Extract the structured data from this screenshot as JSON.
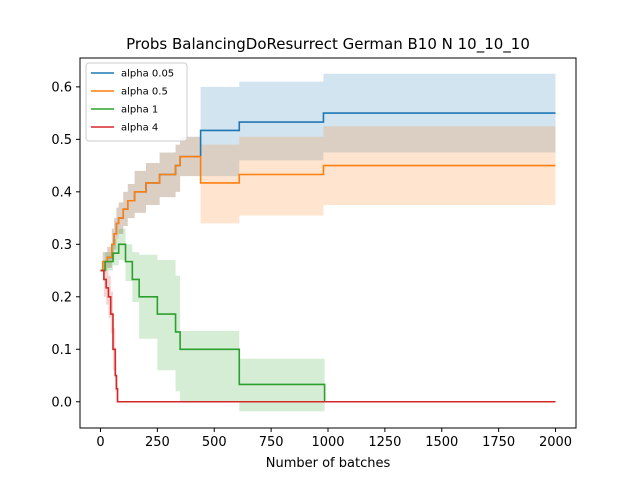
{
  "chart_data": {
    "type": "line",
    "title": "Probs BalancingDoResurrect German B10 N 10_10_10",
    "xlabel": "Number of batches",
    "ylabel": "",
    "xlim": [
      -90,
      2090
    ],
    "ylim": [
      -0.05,
      0.655
    ],
    "x_ticks": [
      0,
      250,
      500,
      750,
      1000,
      1250,
      1500,
      1750,
      2000
    ],
    "x_tick_labels": [
      "0",
      "250",
      "500",
      "750",
      "1000",
      "1250",
      "1500",
      "1750",
      "2000"
    ],
    "y_ticks": [
      0.0,
      0.1,
      0.2,
      0.3,
      0.4,
      0.5,
      0.6
    ],
    "y_tick_labels": [
      "0.0",
      "0.1",
      "0.2",
      "0.3",
      "0.4",
      "0.5",
      "0.6"
    ],
    "grid": false,
    "legend_position": "upper-left",
    "series": [
      {
        "name": "alpha 0.05",
        "color": "#1f77b4",
        "x": [
          0,
          10,
          30,
          50,
          60,
          70,
          80,
          100,
          120,
          150,
          200,
          260,
          300,
          330,
          340,
          350,
          440,
          610,
          970,
          980,
          2000
        ],
        "y": [
          0.25,
          0.267,
          0.275,
          0.3,
          0.32,
          0.34,
          0.35,
          0.367,
          0.383,
          0.4,
          0.417,
          0.433,
          0.433,
          0.45,
          0.45,
          0.467,
          0.517,
          0.533,
          0.533,
          0.55,
          0.55
        ],
        "lower": [
          0.25,
          0.25,
          0.255,
          0.27,
          0.29,
          0.31,
          0.32,
          0.335,
          0.35,
          0.36,
          0.375,
          0.39,
          0.39,
          0.4,
          0.4,
          0.43,
          0.43,
          0.46,
          0.46,
          0.475,
          0.475
        ],
        "upper": [
          0.25,
          0.285,
          0.295,
          0.33,
          0.35,
          0.37,
          0.38,
          0.4,
          0.415,
          0.44,
          0.455,
          0.475,
          0.475,
          0.49,
          0.49,
          0.505,
          0.6,
          0.61,
          0.61,
          0.625,
          0.625
        ]
      },
      {
        "name": "alpha 0.5",
        "color": "#ff7f0e",
        "x": [
          0,
          10,
          30,
          50,
          60,
          70,
          80,
          100,
          120,
          150,
          200,
          260,
          300,
          330,
          340,
          350,
          440,
          610,
          970,
          980,
          2000
        ],
        "y": [
          0.25,
          0.267,
          0.275,
          0.3,
          0.32,
          0.34,
          0.35,
          0.367,
          0.383,
          0.4,
          0.417,
          0.433,
          0.433,
          0.45,
          0.45,
          0.467,
          0.417,
          0.433,
          0.433,
          0.45,
          0.45
        ],
        "lower": [
          0.25,
          0.25,
          0.255,
          0.27,
          0.29,
          0.31,
          0.32,
          0.335,
          0.35,
          0.36,
          0.375,
          0.39,
          0.39,
          0.4,
          0.4,
          0.43,
          0.34,
          0.355,
          0.355,
          0.375,
          0.375
        ],
        "upper": [
          0.25,
          0.285,
          0.295,
          0.33,
          0.35,
          0.37,
          0.38,
          0.4,
          0.415,
          0.44,
          0.455,
          0.475,
          0.475,
          0.49,
          0.49,
          0.505,
          0.49,
          0.505,
          0.505,
          0.525,
          0.525
        ]
      },
      {
        "name": "alpha 1",
        "color": "#2ca02c",
        "x": [
          0,
          20,
          40,
          55,
          60,
          80,
          110,
          140,
          170,
          250,
          320,
          330,
          350,
          610,
          975,
          985,
          2000
        ],
        "y": [
          0.25,
          0.267,
          0.267,
          0.283,
          0.283,
          0.3,
          0.267,
          0.233,
          0.2,
          0.167,
          0.167,
          0.133,
          0.1,
          0.033,
          0.033,
          0.0,
          0.0
        ],
        "lower": [
          0.25,
          0.25,
          0.25,
          0.26,
          0.26,
          0.27,
          0.23,
          0.19,
          0.12,
          0.06,
          0.06,
          0.02,
          0.0,
          -0.018,
          -0.018,
          0.0,
          0.0
        ],
        "upper": [
          0.25,
          0.285,
          0.285,
          0.31,
          0.31,
          0.33,
          0.3,
          0.285,
          0.28,
          0.27,
          0.27,
          0.24,
          0.135,
          0.082,
          0.082,
          0.0,
          0.0
        ]
      },
      {
        "name": "alpha 4",
        "color": "#d62728",
        "x": [
          0,
          15,
          25,
          35,
          45,
          55,
          65,
          70,
          75,
          80,
          2000
        ],
        "y": [
          0.25,
          0.233,
          0.217,
          0.2,
          0.167,
          0.1,
          0.05,
          0.025,
          0.0,
          0.0,
          0.0
        ],
        "lower": [
          0.25,
          0.2,
          0.185,
          0.16,
          0.13,
          0.06,
          0.02,
          0.0,
          0.0,
          0.0,
          0.0
        ],
        "upper": [
          0.25,
          0.265,
          0.25,
          0.24,
          0.21,
          0.14,
          0.08,
          0.05,
          0.0,
          0.0,
          0.0
        ]
      }
    ]
  }
}
